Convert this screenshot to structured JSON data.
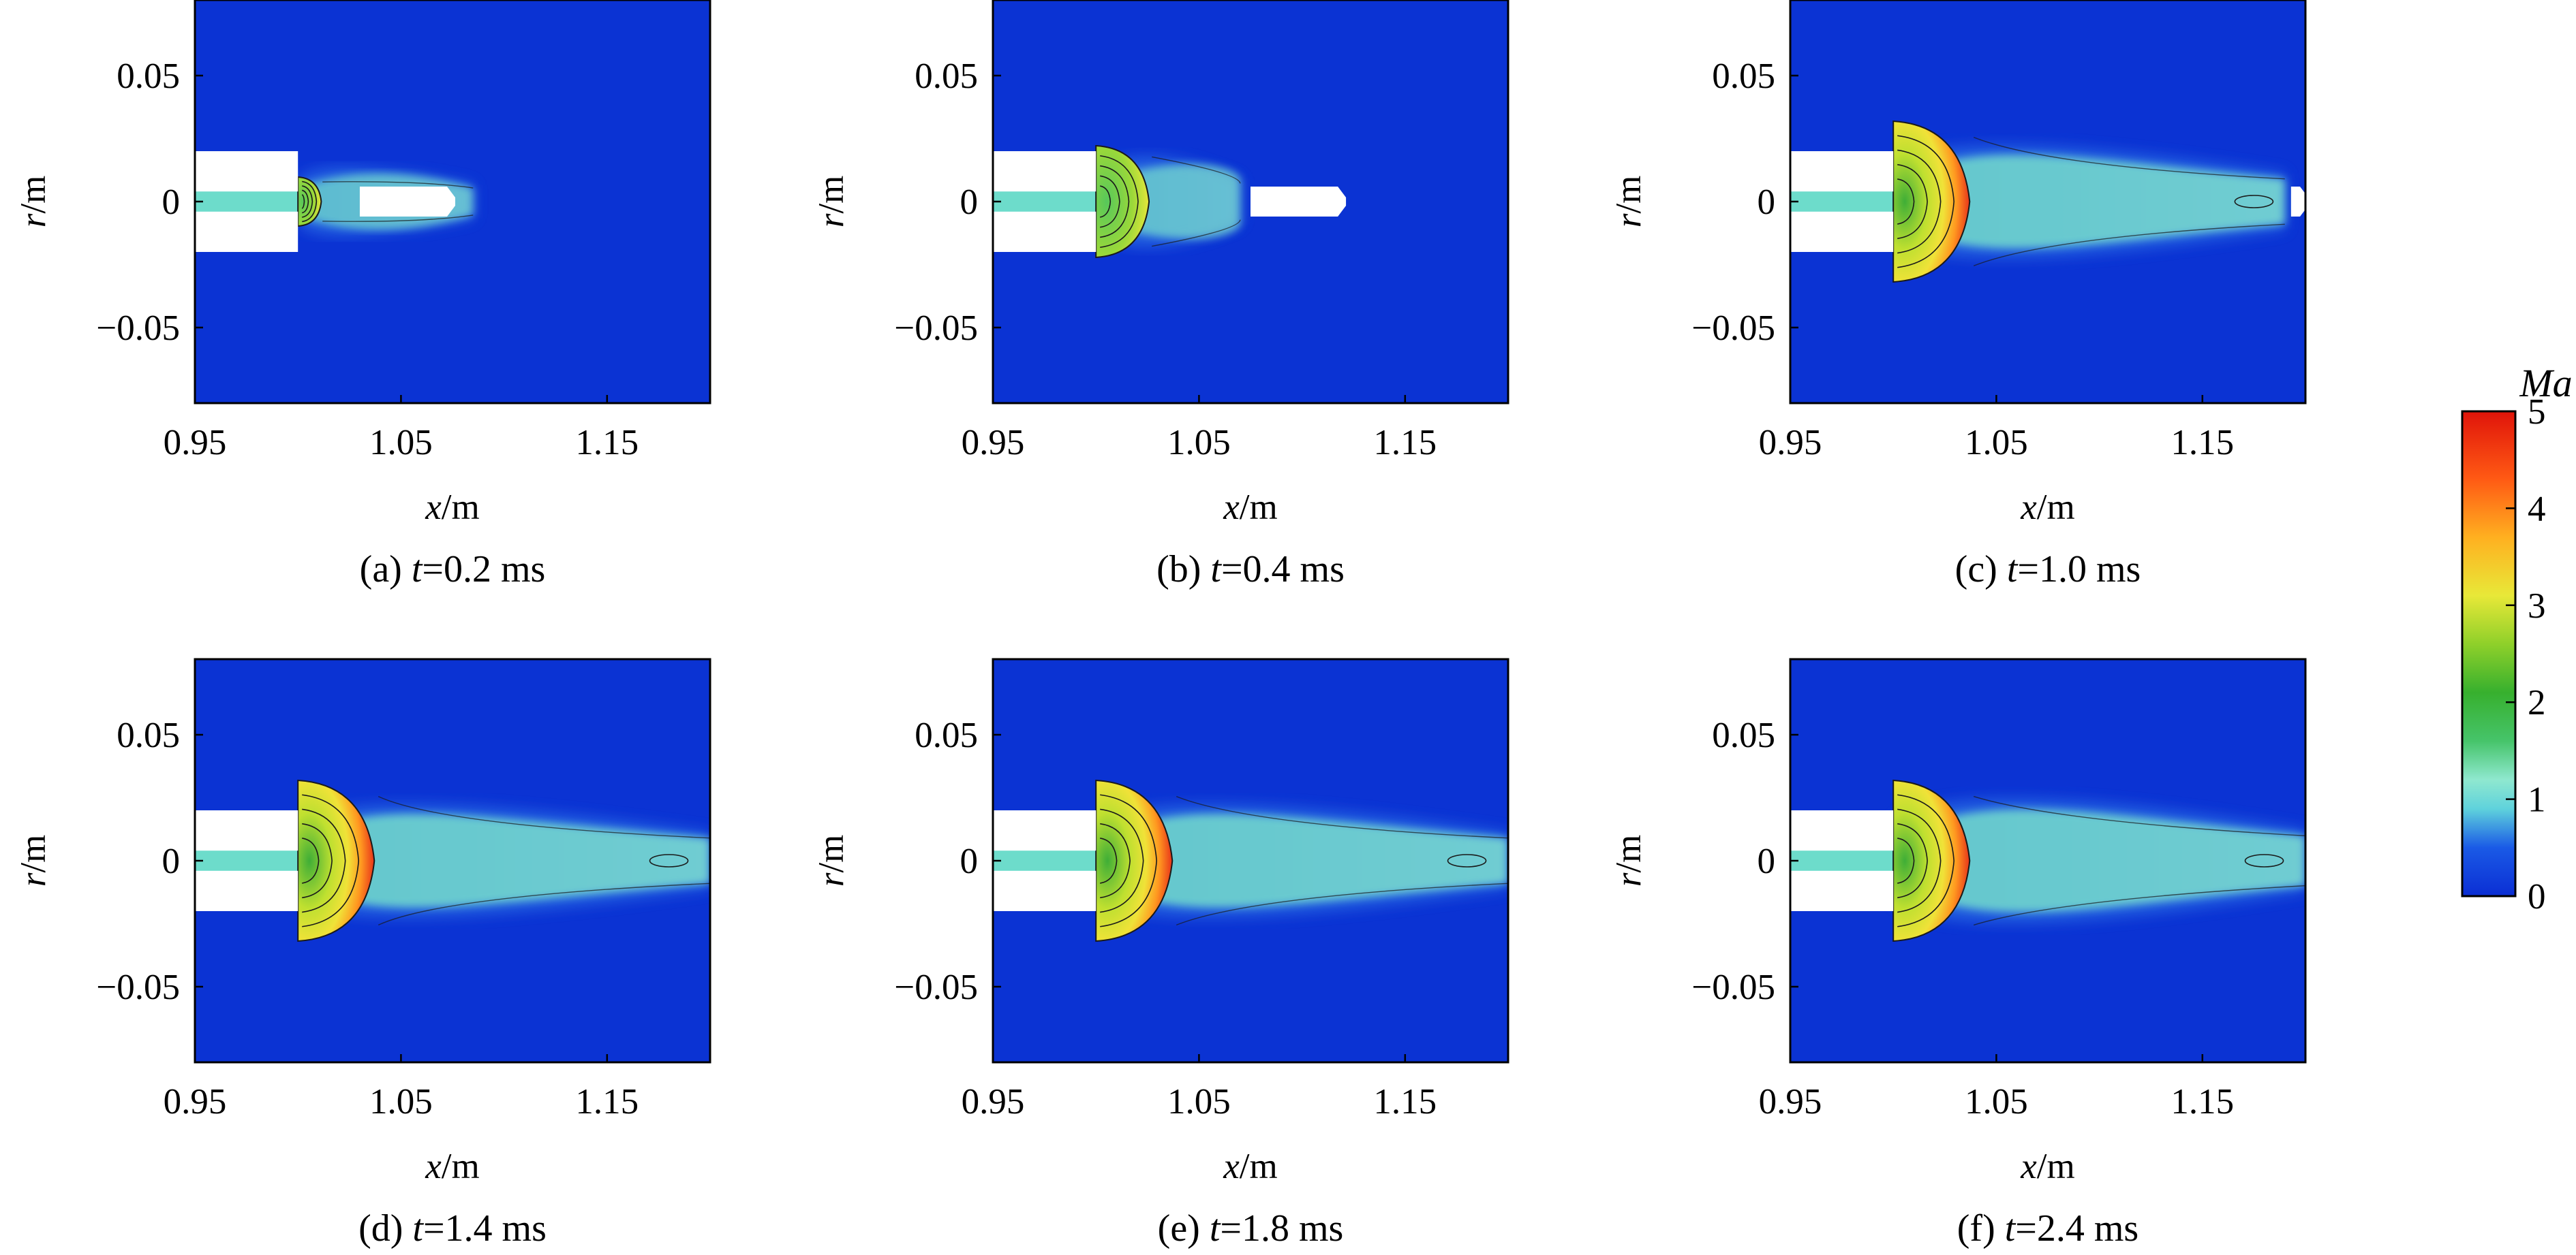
{
  "chart_data": {
    "type": "heatmap",
    "field": "Ma",
    "colorbar": {
      "title": "Ma",
      "range": [
        0,
        5
      ],
      "ticks": [
        "5",
        "4",
        "3",
        "2",
        "1",
        "0"
      ],
      "colors": [
        "#0b34d6",
        "#2a7fe8",
        "#5fcfdc",
        "#7fe8c0",
        "#3fb43a",
        "#7acb24",
        "#e8e838",
        "#ff9a18",
        "#ff3c1c",
        "#e01a0a"
      ]
    },
    "panels": [
      {
        "letter": "(a)",
        "t_value": "=0.2 ms",
        "jet_front_x": 1.08,
        "mach_disk_x": 1.01,
        "outlet_box_x": [
          1.03,
          1.075
        ],
        "plume_end_x": 1.085,
        "plume_half_width": 0.012,
        "max_ma": 2.5
      },
      {
        "letter": "(b)",
        "t_value": "=0.4 ms",
        "jet_front_x": 1.125,
        "mach_disk_x": 1.02,
        "outlet_box_x": [
          1.075,
          1.12
        ],
        "plume_end_x": 1.07,
        "plume_half_width": 0.016,
        "max_ma": 3.5
      },
      {
        "letter": "(c)",
        "t_value": "=1.0 ms",
        "jet_front_x": 1.2,
        "mach_disk_x": 1.025,
        "outlet_box_x": [
          1.193,
          1.2
        ],
        "plume_end_x": 1.19,
        "plume_half_width": 0.02,
        "max_ma": 4.5
      },
      {
        "letter": "(d)",
        "t_value": "=1.4 ms",
        "jet_front_x": 1.2,
        "mach_disk_x": 1.02,
        "outlet_box_x": null,
        "plume_end_x": 1.2,
        "plume_half_width": 0.02,
        "max_ma": 4.5
      },
      {
        "letter": "(e)",
        "t_value": "=1.8 ms",
        "jet_front_x": 1.2,
        "mach_disk_x": 1.025,
        "outlet_box_x": null,
        "plume_end_x": 1.2,
        "plume_half_width": 0.02,
        "max_ma": 4.5
      },
      {
        "letter": "(f)",
        "t_value": "=2.4 ms",
        "jet_front_x": 1.2,
        "mach_disk_x": 1.03,
        "outlet_box_x": null,
        "plume_end_x": 1.2,
        "plume_half_width": 0.022,
        "max_ma": 4.5
      }
    ],
    "x_axis": {
      "label_var": "x",
      "label_unit": "/m",
      "range": [
        0.95,
        1.2
      ],
      "ticks": [
        0.95,
        1.05,
        1.15
      ],
      "tick_labels": [
        "0.95",
        "1.05",
        "1.15"
      ]
    },
    "y_axis": {
      "label_var": "r",
      "label_unit": "/m",
      "range": [
        -0.08,
        0.08
      ],
      "ticks": [
        0.05,
        0,
        -0.05
      ],
      "tick_labels": [
        "0.05",
        "0",
        "−0.05"
      ]
    },
    "nozzle": {
      "x": [
        0.95,
        1.0
      ],
      "outer_half_width": 0.02,
      "inner_half_width": 0.004
    },
    "t_symbol": "t"
  }
}
